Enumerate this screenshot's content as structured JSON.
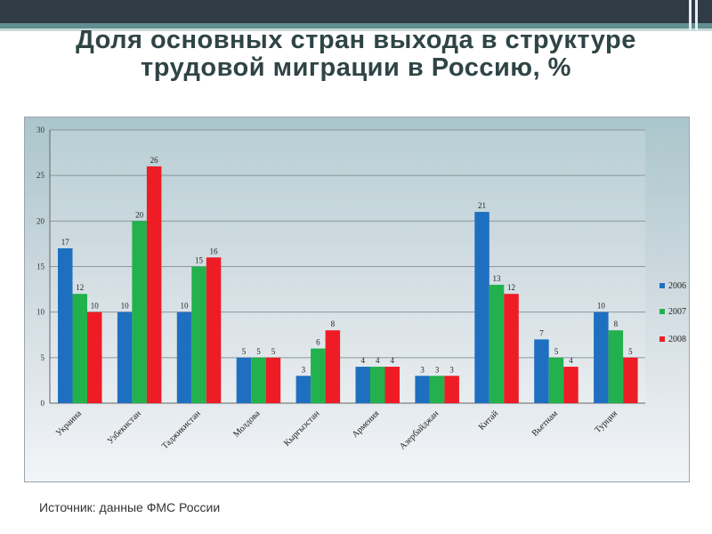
{
  "title": "Доля основных стран выхода в структуре трудовой миграции в Россию, %",
  "source": "Источник: данные ФМС России",
  "colors": {
    "2006": "#1f6fc0",
    "2007": "#22b14c",
    "2008": "#ee1c25"
  },
  "chart_data": {
    "type": "bar",
    "title": "Доля основных стран выхода в структуре трудовой миграции в Россию, %",
    "xlabel": "",
    "ylabel": "",
    "ylim": [
      0,
      30
    ],
    "yticks": [
      "0",
      "5",
      "10",
      "15",
      "20",
      "25",
      "30"
    ],
    "grid": true,
    "legend_position": "right",
    "categories": [
      "Украина",
      "Узбекистан",
      "Таджикистан",
      "Молдова",
      "Кыргызстан",
      "Армения",
      "Азербайджан",
      "Китай",
      "Вьетнам",
      "Турция"
    ],
    "series": [
      {
        "name": "2006",
        "values": [
          17,
          10,
          10,
          5,
          3,
          4,
          3,
          21,
          7,
          10
        ]
      },
      {
        "name": "2007",
        "values": [
          12,
          20,
          15,
          5,
          6,
          4,
          3,
          13,
          5,
          8
        ]
      },
      {
        "name": "2008",
        "values": [
          10,
          26,
          16,
          5,
          8,
          4,
          3,
          12,
          4,
          5
        ]
      }
    ]
  }
}
